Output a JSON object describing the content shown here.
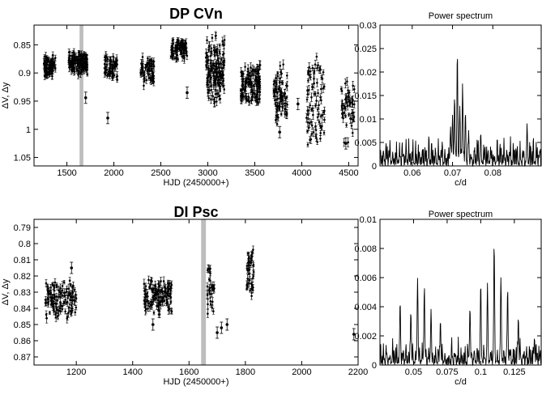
{
  "chart_data": [
    {
      "type": "scatter",
      "title": "DP CVn",
      "xlabel": "HJD (2450000+)",
      "ylabel": "ΔV, Δy",
      "xlim": [
        1150,
        4600
      ],
      "ylim": [
        1.065,
        0.815
      ],
      "y_inverted": true,
      "xticks": [
        1500,
        2000,
        2500,
        3000,
        3500,
        4000,
        4500
      ],
      "yticks": [
        0.85,
        0.9,
        0.95,
        1,
        1.05
      ],
      "xtick_labels": [
        "1500",
        "2000",
        "2500",
        "3000",
        "3500",
        "4000",
        "4500"
      ],
      "ytick_labels": [
        "0.85",
        "0.9",
        "0.95",
        "1",
        "1.05"
      ],
      "highlight_band": [
        1635,
        1675
      ],
      "clusters": [
        {
          "x": [
            1250,
            1380
          ],
          "y": [
            0.865,
            0.91
          ],
          "n": 80
        },
        {
          "x": [
            1520,
            1720
          ],
          "y": [
            0.86,
            0.905
          ],
          "n": 130
        },
        {
          "x": [
            1900,
            2040
          ],
          "y": [
            0.865,
            0.915
          ],
          "n": 60
        },
        {
          "x": [
            2280,
            2430
          ],
          "y": [
            0.87,
            0.925
          ],
          "n": 60
        },
        {
          "x": [
            2600,
            2780
          ],
          "y": [
            0.835,
            0.88
          ],
          "n": 80
        },
        {
          "x": [
            2980,
            3180
          ],
          "y": [
            0.83,
            0.96
          ],
          "n": 150
        },
        {
          "x": [
            3350,
            3560
          ],
          "y": [
            0.875,
            0.96
          ],
          "n": 130
        },
        {
          "x": [
            3700,
            3850
          ],
          "y": [
            0.875,
            1.0
          ],
          "n": 80
        },
        {
          "x": [
            4050,
            4250
          ],
          "y": [
            0.855,
            1.04
          ],
          "n": 80
        },
        {
          "x": [
            4420,
            4560
          ],
          "y": [
            0.9,
            1.03
          ],
          "n": 50
        }
      ],
      "outliers": [
        {
          "x": 1700,
          "y": 0.944
        },
        {
          "x": 1935,
          "y": 0.98
        },
        {
          "x": 2780,
          "y": 0.935
        },
        {
          "x": 3960,
          "y": 0.955
        },
        {
          "x": 3765,
          "y": 1.005
        },
        {
          "x": 4470,
          "y": 1.025
        }
      ]
    },
    {
      "type": "line",
      "title": "Power spectrum",
      "xlabel": "c/d",
      "ylabel": "",
      "xlim": [
        0.052,
        0.092
      ],
      "ylim": [
        0,
        0.03
      ],
      "xticks": [
        0.06,
        0.07,
        0.08
      ],
      "yticks": [
        0,
        0.005,
        0.01,
        0.015,
        0.02,
        0.025,
        0.03
      ],
      "xtick_labels": [
        "0.06",
        "0.07",
        "0.08"
      ],
      "ytick_labels": [
        "0",
        "0.005",
        "0.01",
        "0.015",
        "0.02",
        "0.025",
        "0.03"
      ],
      "baseline_max": 0.007,
      "peaks": [
        {
          "x": 0.0695,
          "y": 0.009
        },
        {
          "x": 0.07,
          "y": 0.012
        },
        {
          "x": 0.0705,
          "y": 0.016
        },
        {
          "x": 0.0712,
          "y": 0.0248
        },
        {
          "x": 0.0718,
          "y": 0.014
        },
        {
          "x": 0.0725,
          "y": 0.018
        },
        {
          "x": 0.0732,
          "y": 0.012
        },
        {
          "x": 0.074,
          "y": 0.008
        },
        {
          "x": 0.077,
          "y": 0.0075
        },
        {
          "x": 0.0885,
          "y": 0.0095
        }
      ]
    },
    {
      "type": "scatter",
      "title": "DI Psc",
      "xlabel": "HJD (2450000+)",
      "ylabel": "ΔV, Δy",
      "xlim": [
        1050,
        2200
      ],
      "ylim": [
        0.875,
        0.785
      ],
      "y_inverted": true,
      "xticks": [
        1200,
        1400,
        1600,
        1800,
        2000,
        2200
      ],
      "yticks": [
        0.79,
        0.8,
        0.81,
        0.82,
        0.83,
        0.84,
        0.85,
        0.86,
        0.87
      ],
      "xtick_labels": [
        "1200",
        "1400",
        "1600",
        "1800",
        "2000",
        "2200"
      ],
      "ytick_labels": [
        "0.79",
        "0.8",
        "0.81",
        "0.82",
        "0.83",
        "0.84",
        "0.85",
        "0.86",
        "0.87"
      ],
      "highlight_band": [
        1643,
        1660
      ],
      "clusters": [
        {
          "x": [
            1090,
            1200
          ],
          "y": [
            0.822,
            0.848
          ],
          "n": 120
        },
        {
          "x": [
            1440,
            1540
          ],
          "y": [
            0.82,
            0.845
          ],
          "n": 120
        },
        {
          "x": [
            1665,
            1690
          ],
          "y": [
            0.81,
            0.845
          ],
          "n": 30
        },
        {
          "x": [
            1805,
            1830
          ],
          "y": [
            0.8,
            0.835
          ],
          "n": 40
        }
      ],
      "outliers": [
        {
          "x": 1183,
          "y": 0.815
        },
        {
          "x": 1472,
          "y": 0.85
        },
        {
          "x": 1700,
          "y": 0.855
        },
        {
          "x": 1715,
          "y": 0.852
        },
        {
          "x": 1735,
          "y": 0.85
        },
        {
          "x": 2185,
          "y": 0.856
        }
      ]
    },
    {
      "type": "line",
      "title": "Power spectrum",
      "xlabel": "c/d",
      "ylabel": "",
      "xlim": [
        0.025,
        0.145
      ],
      "ylim": [
        0,
        0.01
      ],
      "xticks": [
        0.05,
        0.075,
        0.1,
        0.125
      ],
      "yticks": [
        0,
        0.002,
        0.004,
        0.006,
        0.008,
        0.01
      ],
      "xtick_labels": [
        "0.05",
        "0.075",
        "0.1",
        "0.125"
      ],
      "ytick_labels": [
        "0",
        "0.002",
        "0.004",
        "0.006",
        "0.008",
        "0.01"
      ],
      "baseline_max": 0.002,
      "peaks": [
        {
          "x": 0.04,
          "y": 0.0045
        },
        {
          "x": 0.048,
          "y": 0.004
        },
        {
          "x": 0.053,
          "y": 0.0065
        },
        {
          "x": 0.058,
          "y": 0.0058
        },
        {
          "x": 0.063,
          "y": 0.0042
        },
        {
          "x": 0.07,
          "y": 0.0032
        },
        {
          "x": 0.092,
          "y": 0.0045
        },
        {
          "x": 0.1,
          "y": 0.0062
        },
        {
          "x": 0.105,
          "y": 0.006
        },
        {
          "x": 0.11,
          "y": 0.0091
        },
        {
          "x": 0.115,
          "y": 0.007
        },
        {
          "x": 0.12,
          "y": 0.0055
        },
        {
          "x": 0.128,
          "y": 0.0035
        },
        {
          "x": 0.14,
          "y": 0.002
        }
      ]
    }
  ]
}
